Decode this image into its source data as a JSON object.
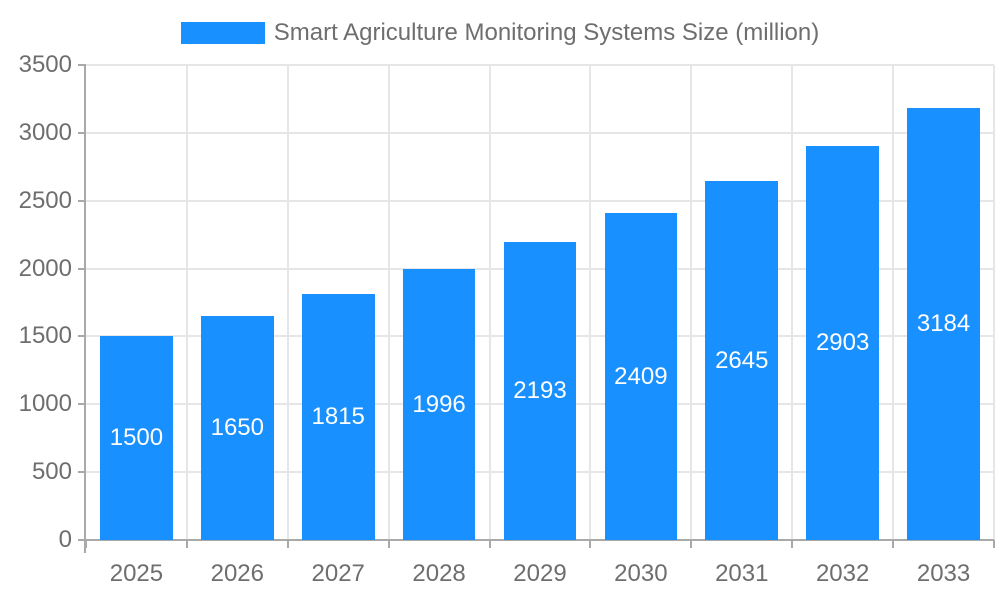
{
  "chart_data": {
    "type": "bar",
    "title": "Smart Agriculture Monitoring Systems Size (million)",
    "legend": {
      "label": "Smart Agriculture Monitoring Systems Size (million)",
      "position": "top"
    },
    "categories": [
      "2025",
      "2026",
      "2027",
      "2028",
      "2029",
      "2030",
      "2031",
      "2032",
      "2033"
    ],
    "series": [
      {
        "name": "Smart Agriculture Monitoring Systems Size (million)",
        "values": [
          1500,
          1650,
          1815,
          1996,
          2193,
          2409,
          2645,
          2903,
          3184
        ]
      }
    ],
    "xlabel": "",
    "ylabel": "",
    "ylim": [
      0,
      3500
    ],
    "ytick_step": 500,
    "yticks": [
      "0",
      "500",
      "1000",
      "1500",
      "2000",
      "2500",
      "3000",
      "3500"
    ],
    "grid": true,
    "bar_value_labels_visible": true,
    "colors": {
      "bar": "#1890ff",
      "bar_label": "#ffffff",
      "axis_text": "#6e6e6e",
      "grid_line": "#e6e6e6",
      "axis_line": "#a9a9a9",
      "background": "#ffffff"
    }
  }
}
